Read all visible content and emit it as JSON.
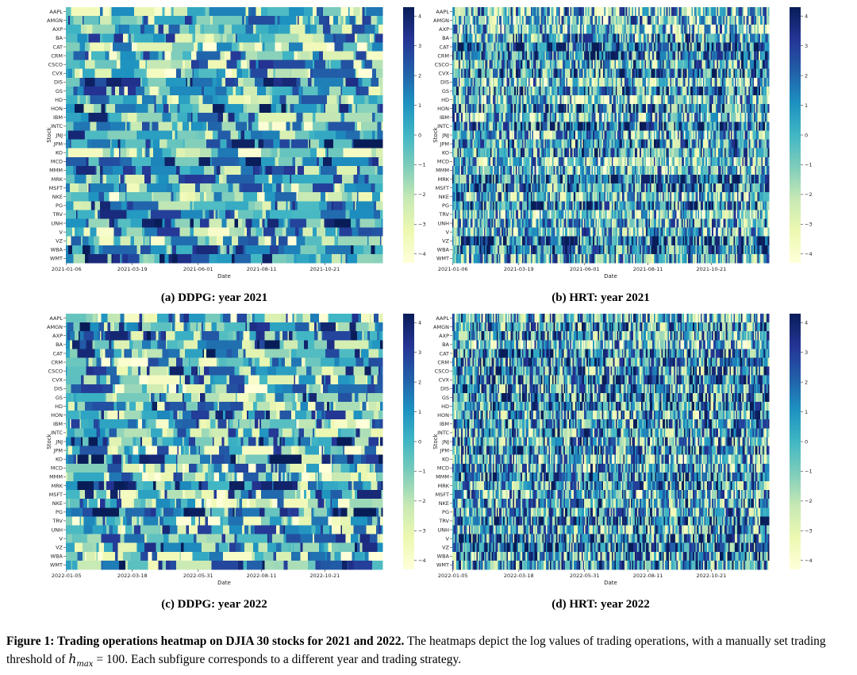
{
  "chart_data": [
    {
      "type": "heatmap",
      "label": "(a)",
      "title": "DDPG: year 2021",
      "strategy": "DDPG",
      "year": 2021,
      "xlabel": "Date",
      "ylabel": "Stock",
      "x_ticks": [
        "2021-01-06",
        "2021-03-19",
        "2021-06-01",
        "2021-08-11",
        "2021-10-21"
      ],
      "stocks": [
        "AAPL",
        "AMGN",
        "AXP",
        "BA",
        "CAT",
        "CRM",
        "CSCO",
        "CVX",
        "DIS",
        "GS",
        "HD",
        "HON",
        "IBM",
        "INTC",
        "JNJ",
        "JPM",
        "KO",
        "MCD",
        "MMM",
        "MRK",
        "MSFT",
        "NKE",
        "PG",
        "TRV",
        "UNH",
        "V",
        "VZ",
        "WBA",
        "WMT"
      ],
      "colorbar": {
        "min": -4.3,
        "max": 4.3,
        "ticks": [
          4,
          3,
          2,
          1,
          0,
          -1,
          -2,
          -3,
          -4
        ],
        "colormap": "YlGnBu"
      },
      "value_range": [
        -4.3,
        4.3
      ]
    },
    {
      "type": "heatmap",
      "label": "(b)",
      "title": "HRT: year 2021",
      "strategy": "HRT",
      "year": 2021,
      "xlabel": "Date",
      "ylabel": "Stock",
      "x_ticks": [
        "2021-01-06",
        "2021-03-19",
        "2021-06-01",
        "2021-08-11",
        "2021-10-21"
      ],
      "stocks": [
        "AAPL",
        "AMGN",
        "AXP",
        "BA",
        "CAT",
        "CRM",
        "CSCO",
        "CVX",
        "DIS",
        "GS",
        "HD",
        "HON",
        "IBM",
        "INTC",
        "JNJ",
        "JPM",
        "KO",
        "MCD",
        "MMM",
        "MRK",
        "MSFT",
        "NKE",
        "PG",
        "TRV",
        "UNH",
        "V",
        "VZ",
        "WBA",
        "WMT"
      ],
      "colorbar": {
        "min": -4.3,
        "max": 4.3,
        "ticks": [
          4,
          3,
          2,
          1,
          0,
          -1,
          -2,
          -3,
          -4
        ],
        "colormap": "YlGnBu"
      },
      "value_range": [
        -4.3,
        4.3
      ]
    },
    {
      "type": "heatmap",
      "label": "(c)",
      "title": "DDPG: year 2022",
      "strategy": "DDPG",
      "year": 2022,
      "xlabel": "Date",
      "ylabel": "Stock",
      "x_ticks": [
        "2022-01-05",
        "2022-03-18",
        "2022-05-31",
        "2022-08-11",
        "2022-10-21"
      ],
      "stocks": [
        "AAPL",
        "AMGN",
        "AXP",
        "BA",
        "CAT",
        "CRM",
        "CSCO",
        "CVX",
        "DIS",
        "GS",
        "HD",
        "HON",
        "IBM",
        "INTC",
        "JNJ",
        "JPM",
        "KO",
        "MCD",
        "MMM",
        "MRK",
        "MSFT",
        "NKE",
        "PG",
        "TRV",
        "UNH",
        "V",
        "VZ",
        "WBA",
        "WMT"
      ],
      "colorbar": {
        "min": -4.3,
        "max": 4.3,
        "ticks": [
          4,
          3,
          2,
          1,
          0,
          -1,
          -2,
          -3,
          -4
        ],
        "colormap": "YlGnBu"
      },
      "value_range": [
        -4.3,
        4.3
      ]
    },
    {
      "type": "heatmap",
      "label": "(d)",
      "title": "HRT: year 2022",
      "strategy": "HRT",
      "year": 2022,
      "xlabel": "Date",
      "ylabel": "Stock",
      "x_ticks": [
        "2022-01-05",
        "2022-03-18",
        "2022-05-31",
        "2022-08-11",
        "2022-10-21"
      ],
      "stocks": [
        "AAPL",
        "AMGN",
        "AXP",
        "BA",
        "CAT",
        "CRM",
        "CSCO",
        "CVX",
        "DIS",
        "GS",
        "HD",
        "HON",
        "IBM",
        "INTC",
        "JNJ",
        "JPM",
        "KO",
        "MCD",
        "MMM",
        "MRK",
        "MSFT",
        "NKE",
        "PG",
        "TRV",
        "UNH",
        "V",
        "VZ",
        "WBA",
        "WMT"
      ],
      "colorbar": {
        "min": -4.3,
        "max": 4.3,
        "ticks": [
          4,
          3,
          2,
          1,
          0,
          -1,
          -2,
          -3,
          -4
        ],
        "colormap": "YlGnBu"
      },
      "value_range": [
        -4.3,
        4.3
      ]
    }
  ],
  "colormap_colors": [
    "#ffffd9",
    "#edf8b1",
    "#c7e9b4",
    "#7fcdbb",
    "#41b6c4",
    "#1d91c0",
    "#225ea8",
    "#253494",
    "#081d58"
  ],
  "figure_caption": {
    "title": "Figure 1: Trading operations heatmap on DJIA 30 stocks for 2021 and 2022.",
    "body_before_math": "The heatmaps depict the log values of trading operations, with a manually set trading threshold of",
    "math_var": "h",
    "math_sub": "max",
    "math_rest": " = 100",
    "body_after_math": ". Each subfigure corresponds to a different year and trading strategy."
  }
}
